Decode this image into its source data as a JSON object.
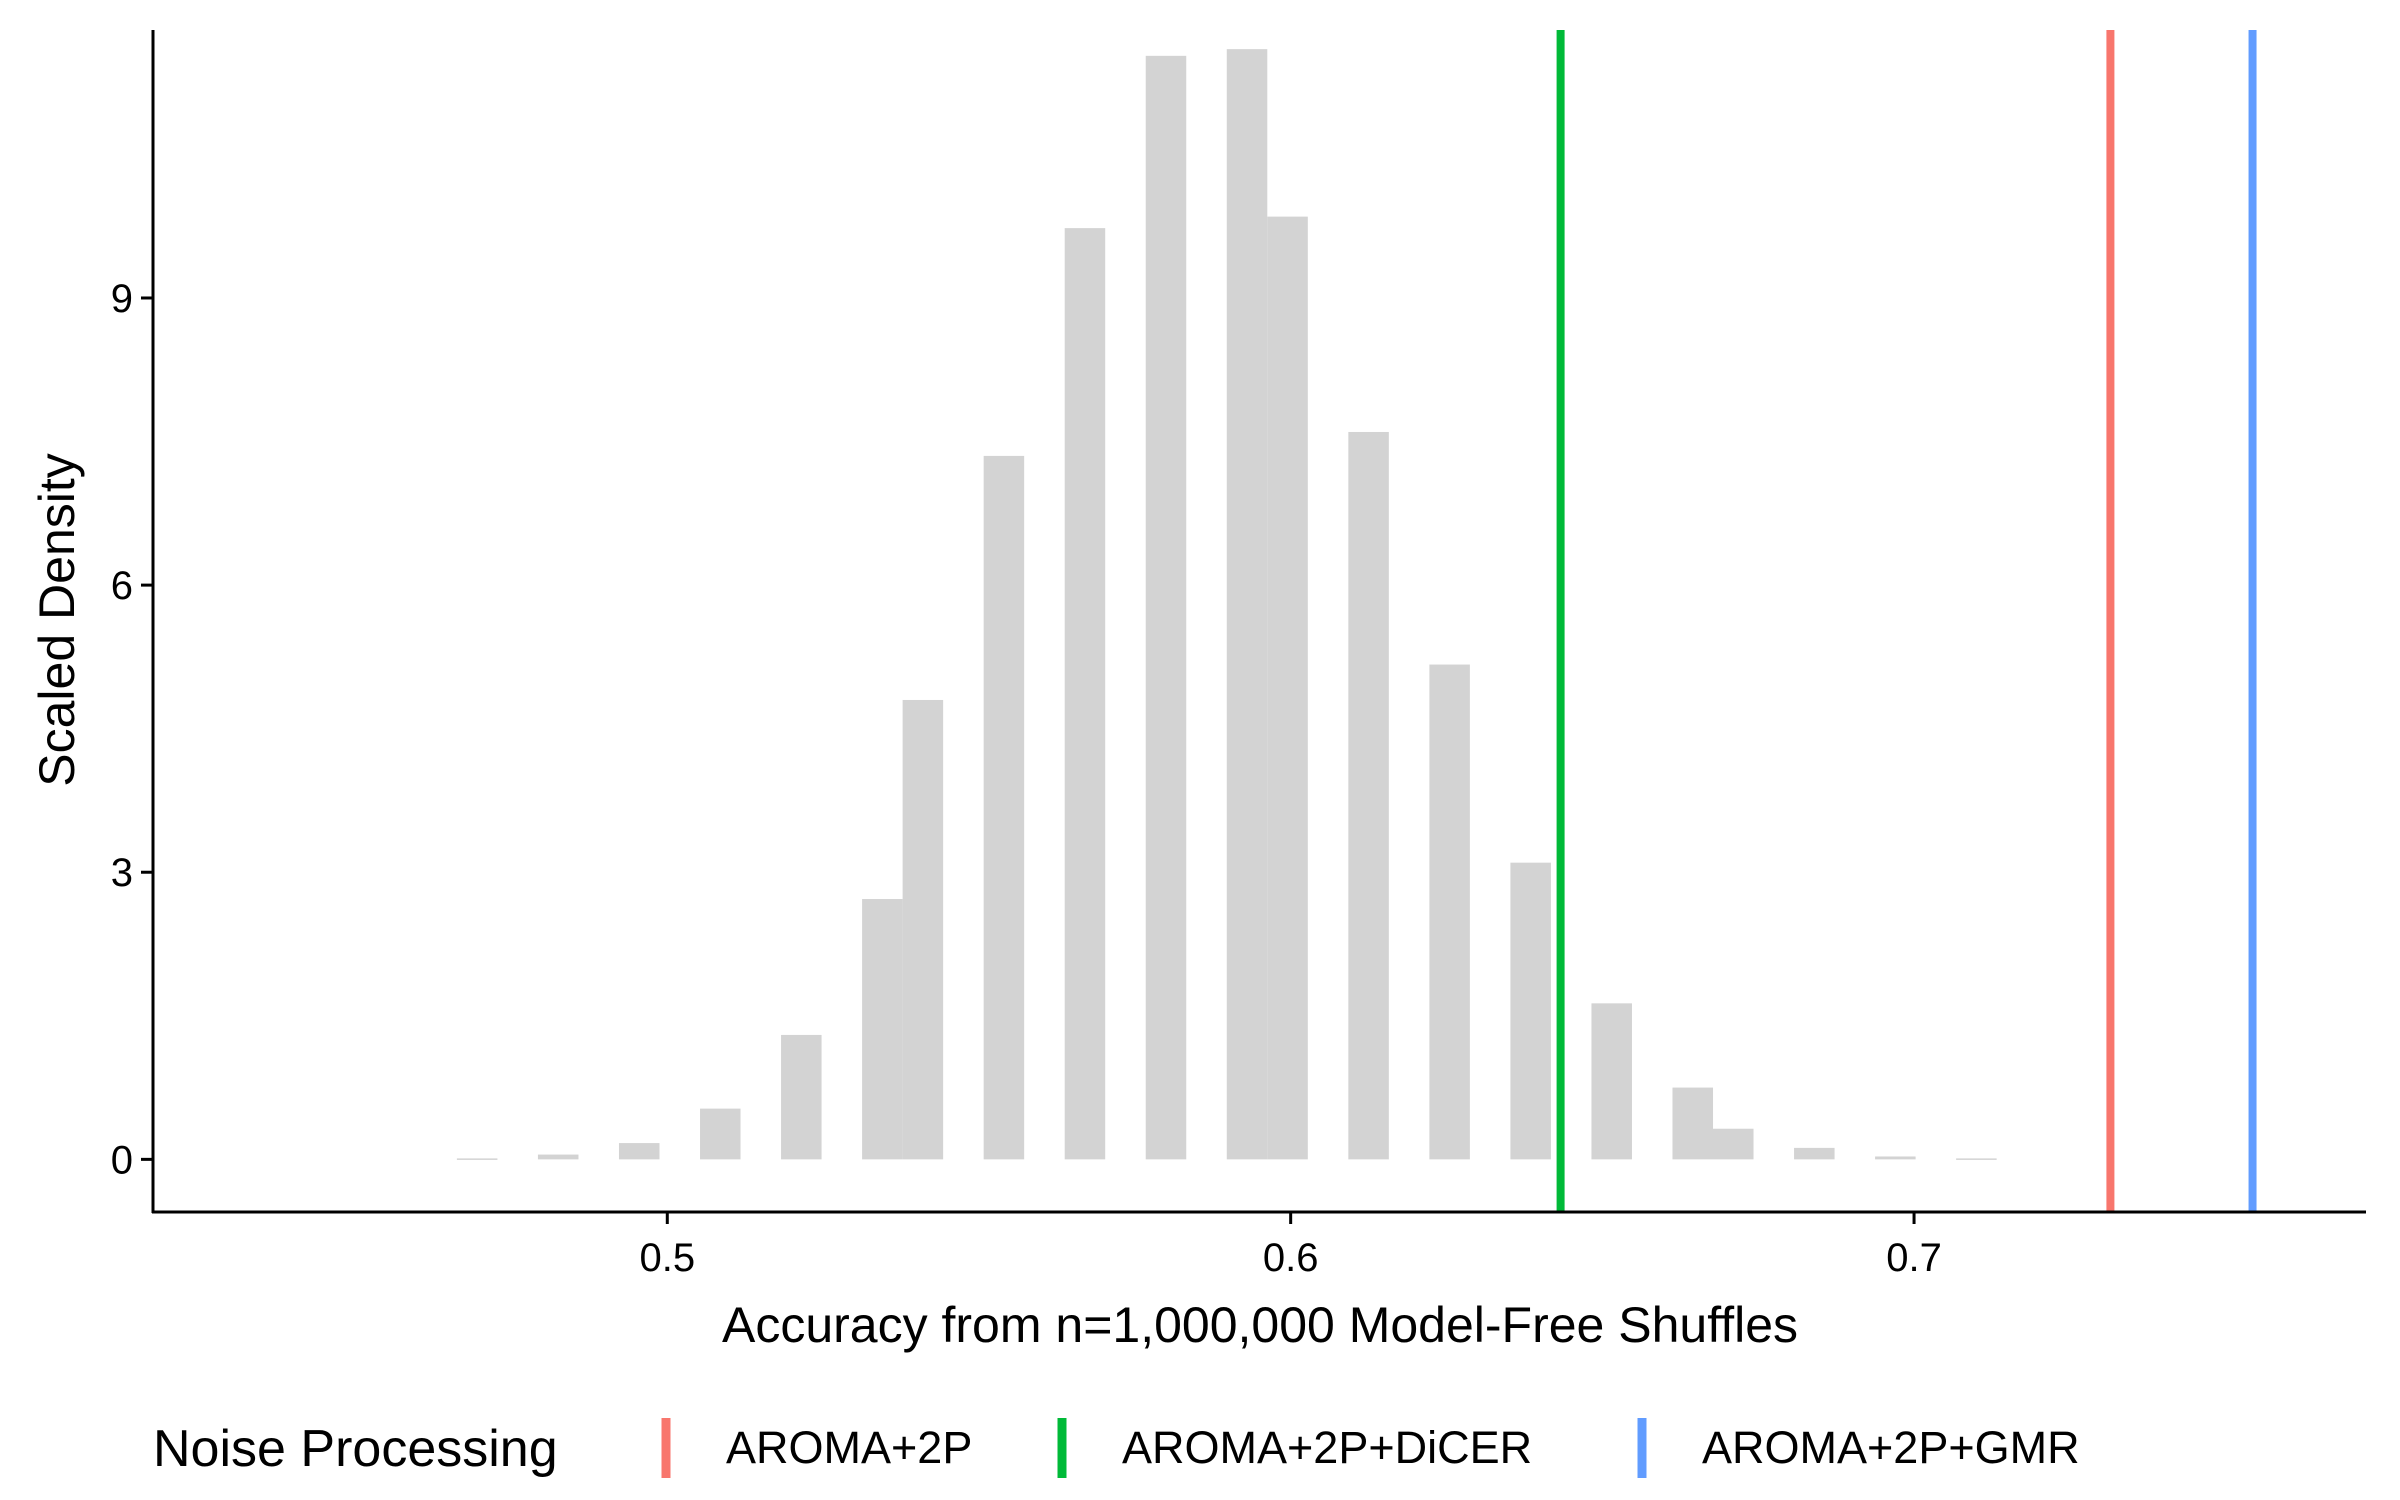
{
  "chart_data": {
    "type": "bar",
    "xlabel": "Accuracy from n=1,000,000 Model-Free Shuffles",
    "ylabel": "Scaled Density",
    "xlim": [
      0.4175,
      0.7725
    ],
    "ylim": [
      -0.55,
      11.8
    ],
    "grid": false,
    "bin_width": 0.0065,
    "x_ticks": [
      {
        "value": 0.5,
        "label": "0.5"
      },
      {
        "value": 0.6,
        "label": "0.6"
      },
      {
        "value": 0.7,
        "label": "0.7"
      }
    ],
    "y_ticks": [
      {
        "value": 0,
        "label": "0"
      },
      {
        "value": 3,
        "label": "3"
      },
      {
        "value": 6,
        "label": "6"
      },
      {
        "value": 9,
        "label": "9"
      }
    ],
    "histogram": {
      "bar_color": "#d3d3d3",
      "bins": [
        {
          "x": 0.4695,
          "density": 0.01
        },
        {
          "x": 0.4825,
          "density": 0.05
        },
        {
          "x": 0.4955,
          "density": 0.17
        },
        {
          "x": 0.5085,
          "density": 0.53
        },
        {
          "x": 0.5215,
          "density": 1.3
        },
        {
          "x": 0.5345,
          "density": 2.72
        },
        {
          "x": 0.541,
          "density": 4.8
        },
        {
          "x": 0.554,
          "density": 7.35
        },
        {
          "x": 0.567,
          "density": 9.73
        },
        {
          "x": 0.58,
          "density": 11.53
        },
        {
          "x": 0.593,
          "density": 11.6
        },
        {
          "x": 0.5995,
          "density": 9.85
        },
        {
          "x": 0.6125,
          "density": 7.6
        },
        {
          "x": 0.6255,
          "density": 5.17
        },
        {
          "x": 0.6385,
          "density": 3.1
        },
        {
          "x": 0.6515,
          "density": 1.63
        },
        {
          "x": 0.6645,
          "density": 0.75
        },
        {
          "x": 0.671,
          "density": 0.32
        },
        {
          "x": 0.684,
          "density": 0.12
        },
        {
          "x": 0.697,
          "density": 0.03
        },
        {
          "x": 0.71,
          "density": 0.01
        }
      ]
    },
    "vlines": [
      {
        "name": "AROMA+2P",
        "x": 0.7315,
        "color": "#F8766D"
      },
      {
        "name": "AROMA+2P+DiCER",
        "x": 0.6433,
        "color": "#00BA38"
      },
      {
        "name": "AROMA+2P+GMR",
        "x": 0.7543,
        "color": "#619CFF"
      }
    ],
    "legend": {
      "title": "Noise Processing",
      "position": "bottom",
      "entries": [
        {
          "label": "AROMA+2P",
          "color": "#F8766D"
        },
        {
          "label": "AROMA+2P+DiCER",
          "color": "#00BA38"
        },
        {
          "label": "AROMA+2P+GMR",
          "color": "#619CFF"
        }
      ]
    }
  }
}
